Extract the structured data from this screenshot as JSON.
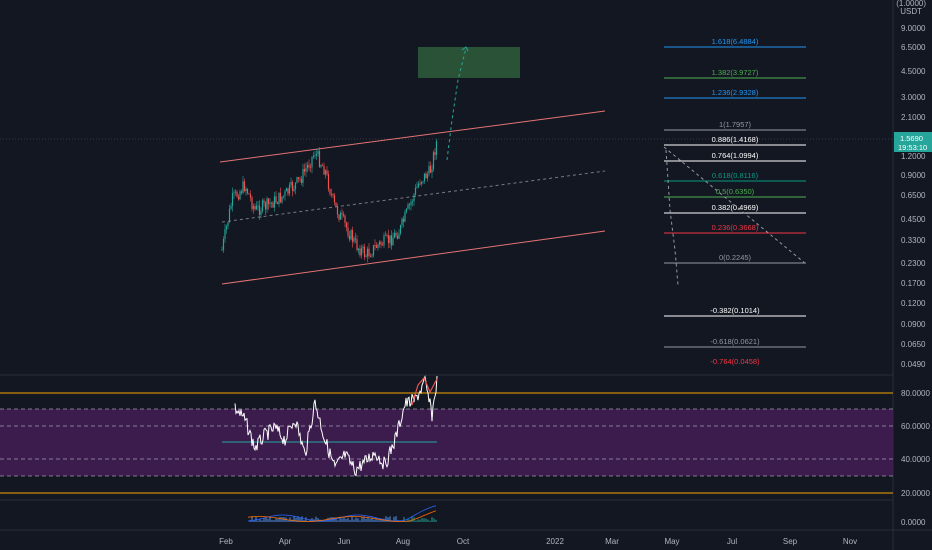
{
  "header": {
    "scale_label": "(1.0000)",
    "currency": "USDT"
  },
  "main_price_axis": [
    "9.0000",
    "6.5000",
    "4.5000",
    "3.0000",
    "2.1000",
    "1.2000",
    "0.9000",
    "0.6500",
    "0.4500",
    "0.3300",
    "0.2300",
    "0.1700",
    "0.1200",
    "0.0900",
    "0.0650",
    "0.0490"
  ],
  "current_price": {
    "value": "1.5690",
    "countdown": "19:53:10",
    "color": "#26a69a"
  },
  "fib_levels": [
    {
      "label": "1.618(6.4884)",
      "color": "#2196f3"
    },
    {
      "label": "1.382(3.9727)",
      "color": "#4caf50"
    },
    {
      "label": "1.236(2.9328)",
      "color": "#2196f3"
    },
    {
      "label": "1(1.7957)",
      "color": "#9598a1"
    },
    {
      "label": "0.886(1.4168)",
      "color": "#ffffff"
    },
    {
      "label": "0.764(1.0994)",
      "color": "#ffffff"
    },
    {
      "label": "0.618(0.8116)",
      "color": "#089981"
    },
    {
      "label": "0.5(0.6350)",
      "color": "#4caf50"
    },
    {
      "label": "0.382(0.4969)",
      "color": "#ffffff"
    },
    {
      "label": "0.236(0.3668)",
      "color": "#f23645"
    },
    {
      "label": "0(0.2245)",
      "color": "#9598a1"
    },
    {
      "label": "-0.382(0.1014)",
      "color": "#ffffff"
    },
    {
      "label": "-0.618(0.0621)",
      "color": "#9598a1"
    },
    {
      "label": "-0.764(0.0458)",
      "color": "#f23645"
    }
  ],
  "rsi_axis": [
    "80.0000",
    "60.0000",
    "40.0000",
    "20.0000"
  ],
  "macd_axis": [
    "0.0000"
  ],
  "time_axis": [
    "Feb",
    "Apr",
    "Jun",
    "Aug",
    "Oct",
    "2022",
    "Mar",
    "May",
    "Jul",
    "Sep",
    "Nov"
  ],
  "colors": {
    "background": "#131722",
    "up": "#26a69a",
    "down": "#ef5350",
    "channel": "#e57373",
    "rsi_band": "#4a1f5c",
    "rsi_line": "#ffffff",
    "target_box": "#2e5d3a"
  }
}
